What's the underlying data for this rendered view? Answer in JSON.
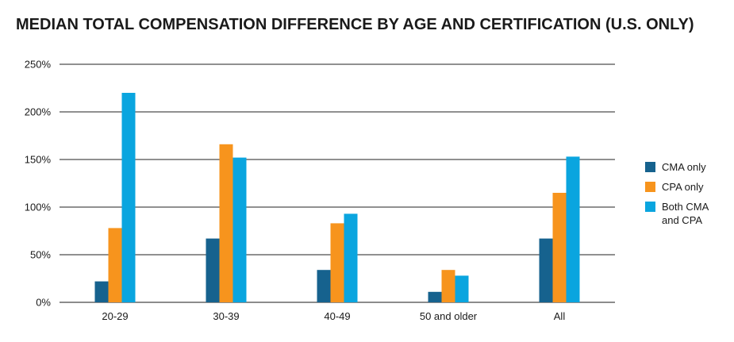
{
  "chart_data": {
    "type": "bar",
    "title": "MEDIAN TOTAL COMPENSATION DIFFERENCE BY AGE AND CERTIFICATION (U.S. ONLY)",
    "categories": [
      "20-29",
      "30-39",
      "40-49",
      "50 and older",
      "All"
    ],
    "series": [
      {
        "name": "CMA only",
        "color": "#16628e",
        "values": [
          22,
          67,
          34,
          11,
          67
        ]
      },
      {
        "name": "CPA only",
        "color": "#f7941d",
        "values": [
          78,
          166,
          83,
          34,
          115
        ]
      },
      {
        "name": "Both CMA\nand CPA",
        "color": "#0aa5df",
        "values": [
          220,
          152,
          93,
          28,
          153
        ]
      }
    ],
    "ylim": [
      0,
      250
    ],
    "yticks": [
      0,
      50,
      100,
      150,
      200,
      250
    ],
    "ytick_labels": [
      "0%",
      "50%",
      "100%",
      "150%",
      "200%",
      "250%"
    ],
    "grid": true,
    "legend_position": "right"
  }
}
